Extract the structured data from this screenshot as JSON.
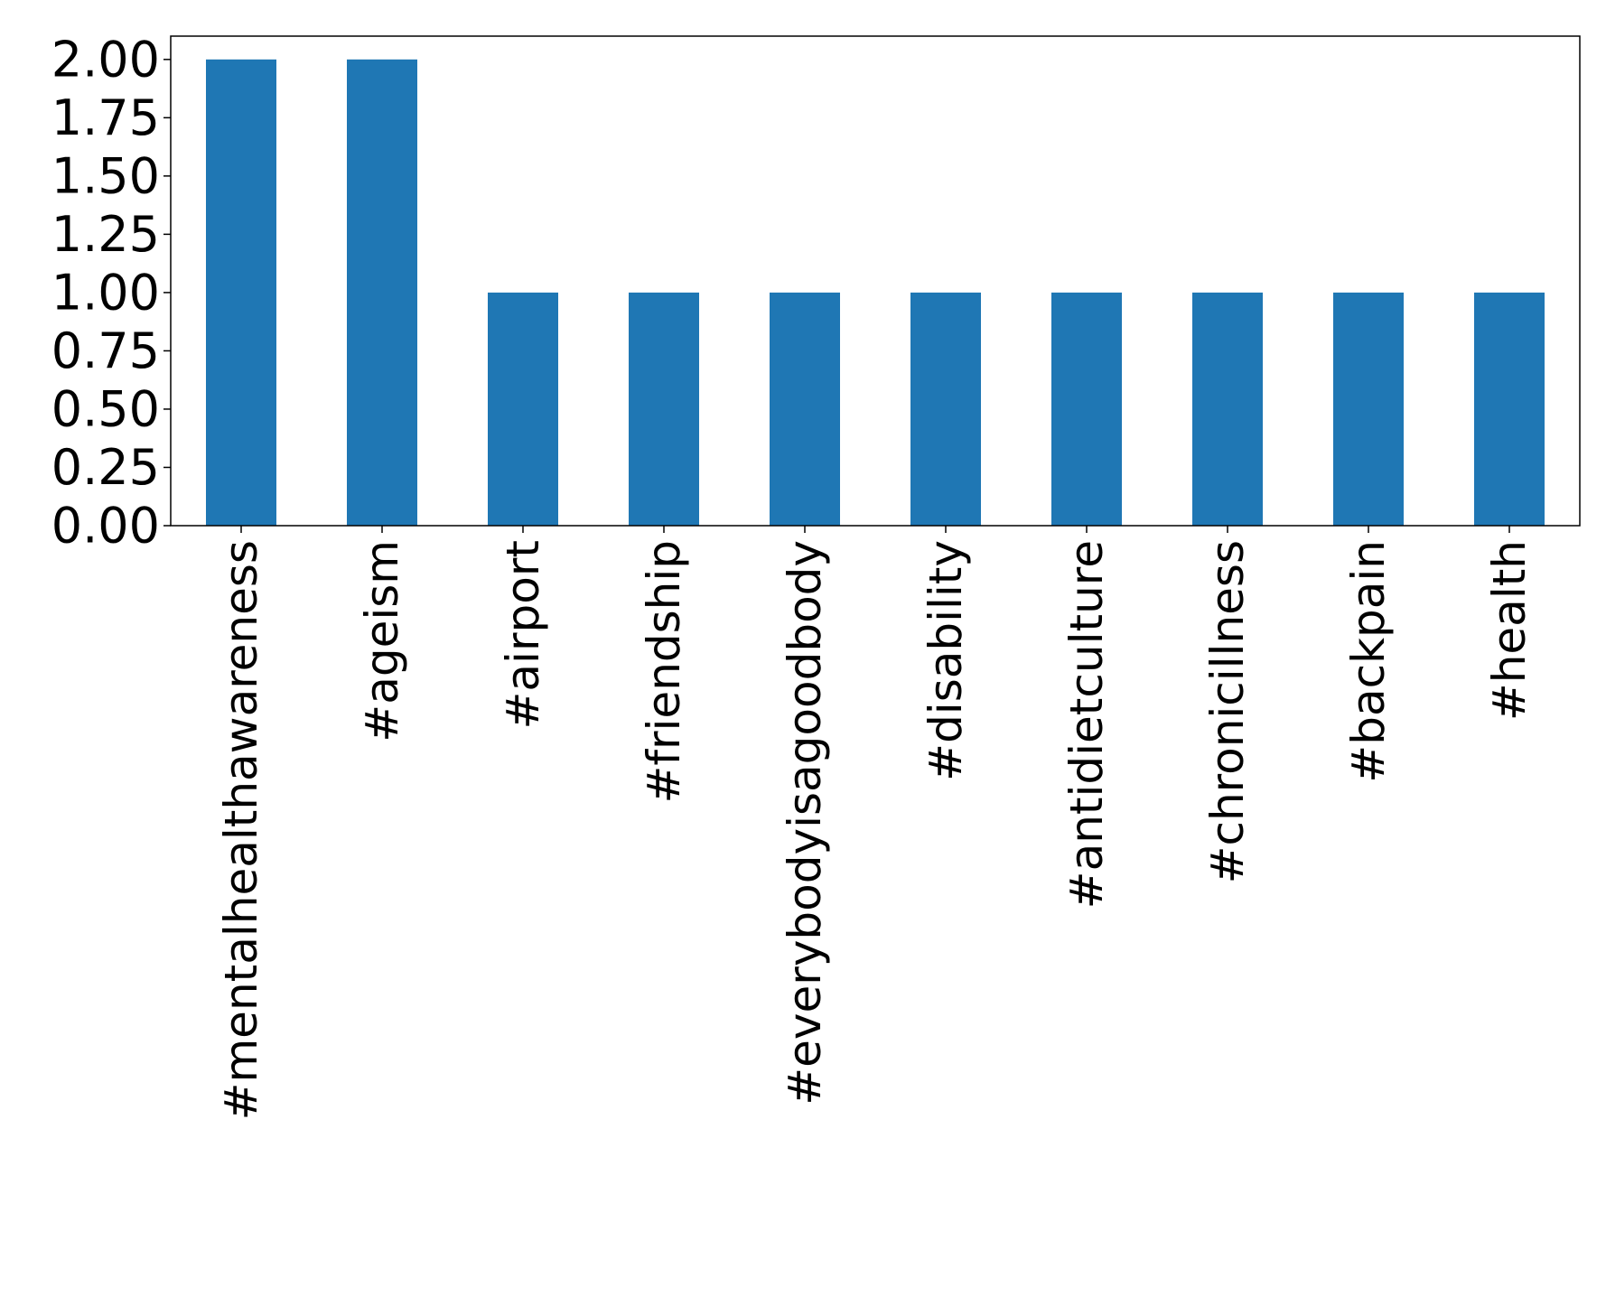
{
  "chart_data": {
    "type": "bar",
    "title": "",
    "xlabel": "",
    "ylabel": "",
    "categories": [
      "#mentalhealthawareness",
      "#ageism",
      "#airport",
      "#friendship",
      "#everybodyisagoodbody",
      "#disability",
      "#antidietculture",
      "#chronicillness",
      "#backpain",
      "#health"
    ],
    "values": [
      2,
      2,
      1,
      1,
      1,
      1,
      1,
      1,
      1,
      1
    ],
    "ylim": [
      0,
      2.1
    ],
    "yticks": [
      "0.00",
      "0.25",
      "0.50",
      "0.75",
      "1.00",
      "1.25",
      "1.50",
      "1.75",
      "2.00"
    ],
    "grid": false,
    "legend": "none",
    "bar_color": "#1f77b4"
  }
}
